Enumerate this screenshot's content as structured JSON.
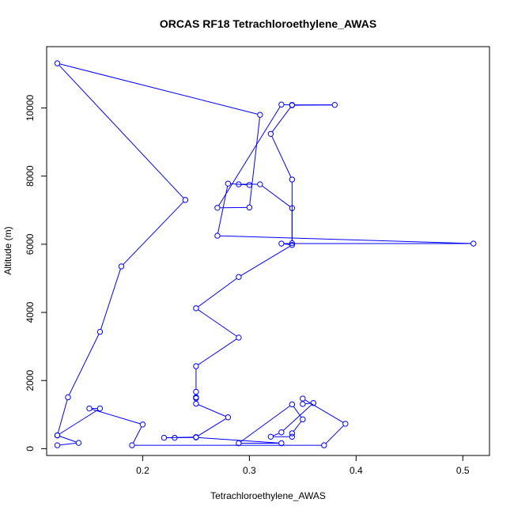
{
  "chart_data": {
    "type": "line",
    "title": "ORCAS RF18 Tetrachloroethylene_AWAS",
    "xlabel": "Tetrachloroethylene_AWAS",
    "ylabel": "Altitude (m)",
    "xlim": [
      0.11,
      0.525
    ],
    "ylim": [
      -200,
      11800
    ],
    "xticks": [
      0.2,
      0.3,
      0.4,
      0.5
    ],
    "xtick_labels": [
      "0.2",
      "0.3",
      "0.4",
      "0.5"
    ],
    "yticks": [
      0,
      2000,
      4000,
      6000,
      8000,
      10000
    ],
    "ytick_labels": [
      "0",
      "2000",
      "4000",
      "6000",
      "8000",
      "10000"
    ],
    "grid": false,
    "series": [
      {
        "color": "#0000ff",
        "marker": "open-circle",
        "points": [
          [
            0.12,
            100
          ],
          [
            0.14,
            170
          ],
          [
            0.12,
            390
          ],
          [
            0.16,
            1180
          ],
          [
            0.15,
            1180
          ],
          [
            0.2,
            710
          ],
          [
            0.19,
            100
          ],
          [
            0.37,
            100
          ],
          [
            0.39,
            730
          ],
          [
            0.35,
            1470
          ],
          [
            0.35,
            1310
          ],
          [
            0.36,
            1340
          ],
          [
            0.33,
            480
          ],
          [
            0.32,
            350
          ],
          [
            0.34,
            350
          ],
          [
            0.34,
            450
          ],
          [
            0.35,
            860
          ],
          [
            0.34,
            1300
          ],
          [
            0.29,
            160
          ],
          [
            0.33,
            160
          ],
          [
            0.25,
            330
          ],
          [
            0.23,
            320
          ],
          [
            0.22,
            320
          ],
          [
            0.25,
            340
          ],
          [
            0.28,
            920
          ],
          [
            0.25,
            1320
          ],
          [
            0.25,
            1480
          ],
          [
            0.25,
            1510
          ],
          [
            0.25,
            1670
          ],
          [
            0.25,
            2420
          ],
          [
            0.29,
            3260
          ],
          [
            0.25,
            4120
          ],
          [
            0.29,
            5040
          ],
          [
            0.34,
            5980
          ],
          [
            0.33,
            6020
          ],
          [
            0.51,
            6020
          ],
          [
            0.27,
            6250
          ],
          [
            0.28,
            7780
          ],
          [
            0.3,
            7740
          ],
          [
            0.29,
            7760
          ],
          [
            0.31,
            7760
          ],
          [
            0.34,
            7060
          ],
          [
            0.34,
            6030
          ],
          [
            0.34,
            7900
          ],
          [
            0.32,
            9240
          ],
          [
            0.34,
            10080
          ],
          [
            0.38,
            10090
          ],
          [
            0.34,
            10090
          ],
          [
            0.33,
            10100
          ],
          [
            0.27,
            7070
          ],
          [
            0.3,
            7080
          ],
          [
            0.31,
            9800
          ],
          [
            0.12,
            11310
          ],
          [
            0.24,
            7300
          ],
          [
            0.18,
            5350
          ],
          [
            0.16,
            3430
          ],
          [
            0.13,
            1510
          ],
          [
            0.12,
            390
          ]
        ]
      }
    ]
  }
}
